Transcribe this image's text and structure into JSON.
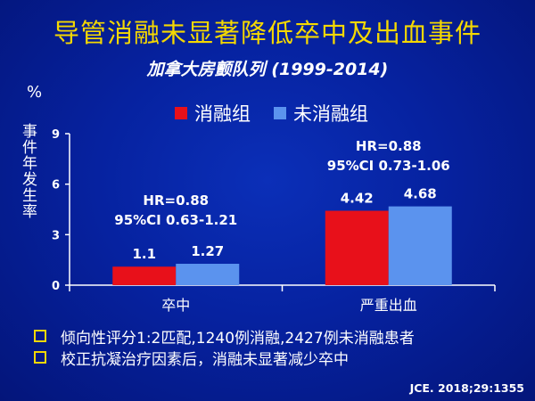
{
  "title": "导管消融未显著降低卒中及出血事件",
  "subtitle": "加拿大房颤队列 (1999-2014)",
  "unit_label": "%",
  "colors": {
    "ablation": "#e8101a",
    "no_ablation": "#5b93ee",
    "title": "#f5d800"
  },
  "chart_data": {
    "type": "bar",
    "ylabel": "事件年发生率",
    "xlabel": "",
    "ylim": [
      0,
      9
    ],
    "yticks": [
      0,
      3,
      6,
      9
    ],
    "categories": [
      "卒中",
      "严重出血"
    ],
    "series": [
      {
        "name": "消融组",
        "values": [
          1.1,
          4.42
        ],
        "labels": [
          "1.1",
          "4.42"
        ]
      },
      {
        "name": "未消融组",
        "values": [
          1.27,
          4.68
        ],
        "labels": [
          "1.27",
          "4.68"
        ]
      }
    ],
    "annotations": [
      {
        "category": "卒中",
        "hr": "HR=0.88",
        "ci": "95%CI 0.63-1.21"
      },
      {
        "category": "严重出血",
        "hr": "HR=0.88",
        "ci": "95%CI 0.73-1.06"
      }
    ],
    "grid": false,
    "legend_position": "top"
  },
  "bullets": [
    "倾向性评分1:2匹配,1240例消融,2427例未消融患者",
    "校正抗凝治疗因素后，消融未显著减少卒中"
  ],
  "citation": "JCE. 2018;29:1355"
}
